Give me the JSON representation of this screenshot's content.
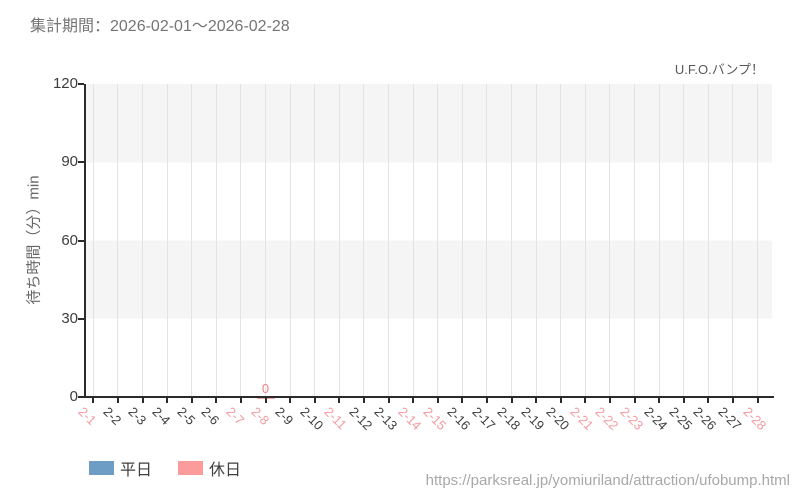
{
  "page": {
    "title": "集計期間：2026-02-01～2026-02-28",
    "source_url": "https://parksreal.jp/yomiuriland/attraction/ufobump.html"
  },
  "chart_data": {
    "type": "scatter",
    "title": "U.F.O.バンプ！",
    "ylabel": "待ち時間（分）min",
    "ylim": [
      0,
      120
    ],
    "yticks": [
      0,
      30,
      60,
      90,
      120
    ],
    "categories": [
      "2-1",
      "2-2",
      "2-3",
      "2-4",
      "2-5",
      "2-6",
      "2-7",
      "2-8",
      "2-9",
      "2-10",
      "2-11",
      "2-12",
      "2-13",
      "2-14",
      "2-15",
      "2-16",
      "2-17",
      "2-18",
      "2-19",
      "2-20",
      "2-21",
      "2-22",
      "2-23",
      "2-24",
      "2-25",
      "2-26",
      "2-27",
      "2-28"
    ],
    "holiday_categories": [
      "2-1",
      "2-7",
      "2-8",
      "2-11",
      "2-14",
      "2-15",
      "2-21",
      "2-22",
      "2-23",
      "2-28"
    ],
    "series": [
      {
        "key": "weekday",
        "name": "平日",
        "color": "#6d9dc5",
        "points": []
      },
      {
        "key": "holiday",
        "name": "休日",
        "color": "#fb9b9b",
        "points": [
          {
            "category": "2-8",
            "value": 0
          }
        ]
      }
    ],
    "legend_position": "bottom-left",
    "grid": "vertical",
    "plot_band_color": "#f5f5f5"
  },
  "colors": {
    "weekday_series": "#6d9dc5",
    "holiday_series": "#fb9b9b",
    "weekday_tick_label": "#3d3d3d",
    "holiday_tick_label": "#f59aa0",
    "point_dash": "#f5a6a6",
    "point_label": "#f47f7f",
    "axis": "#2b2b2b",
    "gridline": "#e3e3e3",
    "band": "#f5f5f5",
    "title_text": "#757575",
    "url_text": "#a8a8a8"
  }
}
